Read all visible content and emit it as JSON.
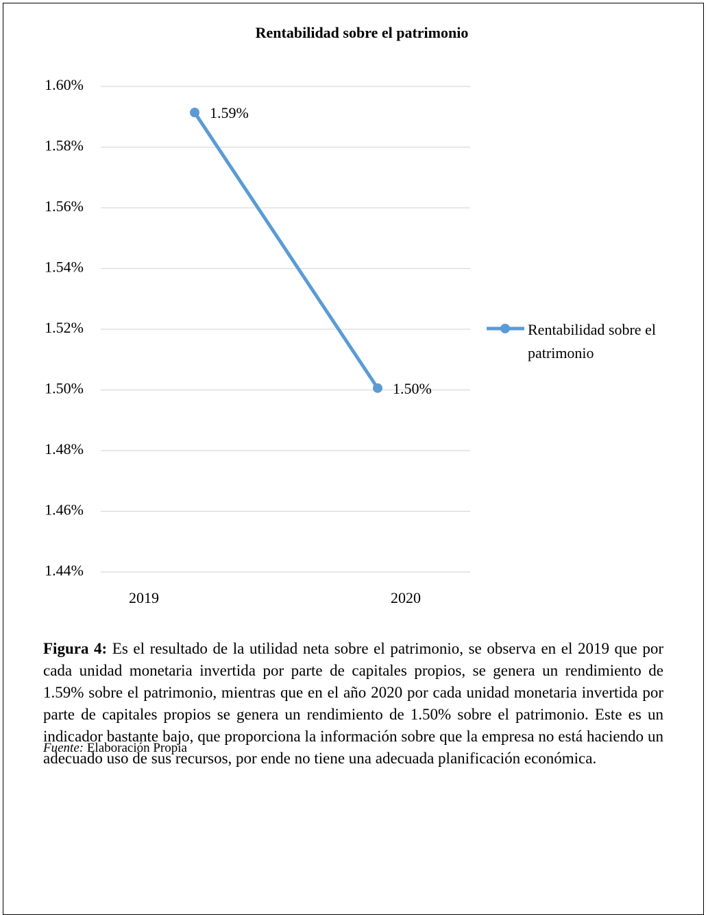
{
  "chart_data": {
    "type": "line",
    "title": "Rentabilidad sobre el patrimonio",
    "categories": [
      "2019",
      "2020"
    ],
    "series": [
      {
        "name": "Rentabilidad sobre el patrimonio",
        "color": "#5b9bd5",
        "values": [
          1.5914,
          1.5006
        ],
        "value_labels": [
          "1.59%",
          "1.50%"
        ]
      }
    ],
    "ylim": [
      1.44,
      1.6
    ],
    "yticks": [
      {
        "value": 1.44,
        "label": "1.44%"
      },
      {
        "value": 1.46,
        "label": "1.46%"
      },
      {
        "value": 1.48,
        "label": "1.48%"
      },
      {
        "value": 1.5,
        "label": "1.50%"
      },
      {
        "value": 1.52,
        "label": "1.52%"
      },
      {
        "value": 1.54,
        "label": "1.54%"
      },
      {
        "value": 1.56,
        "label": "1.56%"
      },
      {
        "value": 1.58,
        "label": "1.58%"
      },
      {
        "value": 1.6,
        "label": "1.60%"
      }
    ],
    "grid": true,
    "legend": "right"
  },
  "caption": {
    "label": "Figura 4:",
    "text": "Es el resultado de la utilidad neta sobre el patrimonio, se observa en el 2019 que por cada unidad monetaria invertida por parte de capitales propios,  se genera un rendimiento de 1.59% sobre el patrimonio, mientras que en el año 2020 por cada unidad monetaria invertida por parte de capitales propios se genera un rendimiento de 1.50% sobre el patrimonio. Este es un indicador bastante bajo, que proporciona la información sobre que la empresa no está haciendo un adecuado uso de sus recursos, por ende no tiene una adecuada planificación económica."
  },
  "source": {
    "label": "Fuente:",
    "text": "Elaboración Propia"
  }
}
